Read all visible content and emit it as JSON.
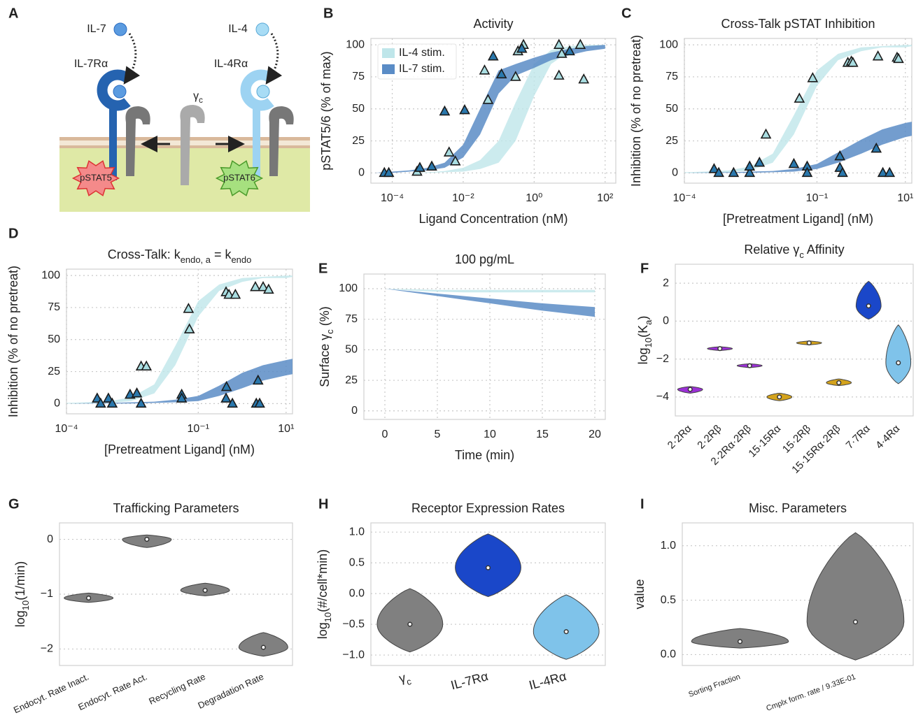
{
  "diagram": {
    "panel": "A",
    "ligands": [
      "IL-7",
      "IL-4"
    ],
    "receptors": [
      "IL-7Rα",
      "IL-4Rα"
    ],
    "common_chain": [
      "γ",
      "c"
    ],
    "signals": [
      "pSTAT5",
      "pSTAT6"
    ]
  },
  "chart_data": [
    {
      "panel": "B",
      "type": "curve",
      "title": "Activity",
      "xlabel": "Ligand Concentration (nM)",
      "ylabel": "pSTAT5/6 (% of max)",
      "xlog": true,
      "xlim": [
        2.5e-05,
        200
      ],
      "ylim": [
        -8,
        105
      ],
      "xticks": [
        {
          "value": 0.0001,
          "label": "10⁻⁴"
        },
        {
          "value": 0.01,
          "label": "10⁻²"
        },
        {
          "value": 1,
          "label": "10⁰"
        },
        {
          "value": 100,
          "label": "10²"
        }
      ],
      "yticks": [
        0,
        25,
        50,
        75,
        100
      ],
      "grid": true,
      "legend": "upper left",
      "series": [
        {
          "name": "IL-4 stim.",
          "color": "#bfe6ea",
          "marker_color": "#a9dde1",
          "x": [
            0.0005,
            0.004,
            0.006,
            0.04,
            0.05,
            0.3,
            0.35,
            0.5,
            5,
            6,
            20,
            5,
            25
          ],
          "values": [
            1,
            16,
            9,
            80,
            57,
            75,
            95,
            100,
            100,
            93,
            100,
            76,
            73
          ],
          "band": {
            "x": [
              3e-05,
              0.0001,
              0.0003,
              0.001,
              0.003,
              0.01,
              0.03,
              0.1,
              0.3,
              1,
              3,
              10,
              30,
              100
            ],
            "lower": [
              0,
              0,
              0,
              0,
              0.5,
              1,
              3,
              8,
              25,
              60,
              85,
              95,
              98,
              99
            ],
            "upper": [
              0,
              0,
              0,
              0.5,
              1.5,
              4,
              10,
              25,
              55,
              85,
              96,
              99,
              100,
              100
            ]
          }
        },
        {
          "name": "IL-7 stim.",
          "color": "#5a8cc6",
          "marker_color": "#2a78ad",
          "x": [
            6e-05,
            8e-05,
            0.0006,
            0.0013,
            0.003,
            0.011,
            0.07,
            0.12,
            0.45,
            10
          ],
          "values": [
            0,
            0,
            4,
            5,
            48,
            49,
            91,
            77,
            97,
            95
          ],
          "band": {
            "x": [
              3e-05,
              0.0001,
              0.0003,
              0.001,
              0.003,
              0.01,
              0.03,
              0.1,
              0.3,
              1,
              3,
              10,
              30,
              100
            ],
            "lower": [
              0,
              0,
              1,
              2,
              4,
              12,
              30,
              62,
              76,
              82,
              88,
              92,
              95,
              97
            ],
            "upper": [
              0,
              1,
              2,
              4,
              8,
              22,
              50,
              80,
              85,
              90,
              94,
              97,
              99,
              100
            ]
          }
        }
      ]
    },
    {
      "panel": "C",
      "type": "curve",
      "title": "Cross-Talk pSTAT Inhibition",
      "xlabel": "[Pretreatment Ligand] (nM)",
      "ylabel": "Inhibition (% of no pretreat)",
      "xlog": true,
      "xlim": [
        0.0001,
        14
      ],
      "ylim": [
        -8,
        105
      ],
      "xticks": [
        {
          "value": 0.0001,
          "label": "10⁻⁴"
        },
        {
          "value": 0.1,
          "label": "10⁻¹"
        },
        {
          "value": 10,
          "label": "10¹"
        }
      ],
      "yticks": [
        0,
        25,
        50,
        75,
        100
      ],
      "grid": true,
      "series": [
        {
          "color": "#bfe6ea",
          "marker_color": "#a9dde1",
          "x": [
            0.007,
            0.04,
            0.08,
            0.5,
            0.6,
            0.65,
            2.4,
            6.5,
            7
          ],
          "values": [
            30,
            58,
            74,
            86,
            87,
            86,
            91,
            90,
            89
          ],
          "band": {
            "x": [
              0.0001,
              0.0003,
              0.001,
              0.003,
              0.01,
              0.03,
              0.1,
              0.3,
              1,
              3,
              10,
              14
            ],
            "lower": [
              0,
              0,
              0.5,
              2,
              8,
              30,
              68,
              88,
              95,
              98,
              98,
              99
            ],
            "upper": [
              0.5,
              1,
              2,
              5,
              15,
              45,
              80,
              93,
              98,
              99,
              100,
              100
            ]
          }
        },
        {
          "color": "#5a8cc6",
          "marker_color": "#2a78ad",
          "x": [
            0.00047,
            0.0006,
            0.0013,
            0.003,
            0.003,
            0.005,
            0.03,
            0.06,
            0.06,
            0.33,
            0.33,
            0.38,
            2.2,
            3.1,
            4.4
          ],
          "values": [
            3,
            0,
            0,
            0,
            5,
            8,
            7,
            5,
            0,
            13,
            4,
            0,
            19,
            0,
            0
          ],
          "band": {
            "x": [
              0.0001,
              0.0003,
              0.001,
              0.003,
              0.01,
              0.03,
              0.1,
              0.3,
              1,
              3,
              10,
              14
            ],
            "lower": [
              0,
              0,
              0,
              0,
              0.5,
              1,
              3,
              8,
              15,
              22,
              28,
              29
            ],
            "upper": [
              0,
              0.3,
              0.5,
              1,
              1.5,
              3,
              7,
              16,
              26,
              34,
              39,
              40
            ]
          }
        }
      ]
    },
    {
      "panel": "D",
      "type": "curve",
      "title": [
        "Cross-Talk: k",
        "endo, a",
        " = k",
        "endo"
      ],
      "xlabel": "[Pretreatment Ligand] (nM)",
      "ylabel": "Inhibition (% of no pretreat)",
      "xlog": true,
      "xlim": [
        0.0001,
        14
      ],
      "ylim": [
        -8,
        105
      ],
      "xticks": [
        {
          "value": 0.0001,
          "label": "10⁻⁴"
        },
        {
          "value": 0.1,
          "label": "10⁻¹"
        },
        {
          "value": 10,
          "label": "10¹"
        }
      ],
      "yticks": [
        0,
        25,
        50,
        75,
        100
      ],
      "grid": true,
      "series": [
        {
          "color": "#bfe6ea",
          "marker_color": "#a9dde1",
          "x": [
            0.005,
            0.0066,
            0.06,
            0.063,
            0.43,
            0.5,
            0.7,
            2,
            3,
            4
          ],
          "values": [
            29,
            29,
            74,
            58,
            87,
            85,
            85,
            91,
            91,
            89
          ],
          "band": {
            "x": [
              0.0001,
              0.0003,
              0.001,
              0.003,
              0.01,
              0.03,
              0.1,
              0.3,
              1,
              3,
              10,
              14
            ],
            "lower": [
              0,
              0,
              0.5,
              2,
              8,
              30,
              68,
              88,
              95,
              98,
              98,
              99
            ],
            "upper": [
              0.5,
              1,
              2,
              5,
              15,
              45,
              80,
              93,
              98,
              99,
              100,
              100
            ]
          }
        },
        {
          "color": "#5a8cc6",
          "marker_color": "#2a78ad",
          "x": [
            0.0005,
            0.0006,
            0.0009,
            0.0011,
            0.0028,
            0.004,
            0.005,
            0.042,
            0.042,
            0.44,
            0.43,
            0.6,
            2.3,
            2.1,
            2.5
          ],
          "values": [
            4,
            0,
            4,
            0,
            7,
            8,
            0,
            7,
            4,
            13,
            4,
            0,
            18,
            0,
            0
          ],
          "band": {
            "x": [
              0.0001,
              0.0003,
              0.001,
              0.003,
              0.01,
              0.03,
              0.1,
              0.3,
              1,
              3,
              10,
              14
            ],
            "lower": [
              0,
              0,
              0,
              0,
              0.5,
              1,
              2,
              6,
              12,
              18,
              22,
              23
            ],
            "upper": [
              0,
              0.3,
              0.5,
              1,
              1.5,
              3,
              6,
              14,
              24,
              30,
              34,
              35
            ]
          }
        }
      ]
    },
    {
      "panel": "E",
      "type": "curve",
      "title": "100 pg/mL",
      "xlabel": "Time (min)",
      "ylabel": [
        "Surface γ",
        "c",
        " (%)"
      ],
      "xlog": false,
      "xlim": [
        -2,
        21
      ],
      "ylim": [
        -7,
        112
      ],
      "xticks": [
        0,
        5,
        10,
        15,
        20
      ],
      "yticks": [
        0,
        25,
        50,
        75,
        100
      ],
      "grid": true,
      "series": [
        {
          "color": "#bfe6ea",
          "band": {
            "x": [
              0,
              2.5,
              5,
              7.5,
              10,
              12.5,
              15,
              17.5,
              20
            ],
            "lower": [
              100,
              98.5,
              97.5,
              97,
              97,
              97,
              97,
              97,
              97
            ],
            "upper": [
              100,
              99.5,
              99,
              99,
              99,
              99,
              99,
              99,
              99
            ]
          }
        },
        {
          "color": "#5a8cc6",
          "band": {
            "x": [
              0,
              2.5,
              5,
              7.5,
              10,
              12.5,
              15,
              17.5,
              20
            ],
            "lower": [
              100,
              97,
              94,
              91,
              88,
              85,
              82,
              79.5,
              77
            ],
            "upper": [
              100,
              98,
              96,
              94,
              92,
              90,
              88,
              86.5,
              85
            ]
          }
        }
      ]
    },
    {
      "panel": "F",
      "type": "violin",
      "title": [
        "Relative γ",
        "c",
        " Affinity"
      ],
      "ylabel": [
        "log",
        "10",
        "(K",
        "a",
        ")"
      ],
      "categories": [
        "2·2Rα",
        "2·2Rβ",
        "2·2Rα·2Rβ",
        "15·15Rα",
        "15·2Rβ",
        "15·15Rα·2Rβ",
        "7·7Rα",
        "4·4Rα"
      ],
      "colors": [
        "#9b30d6",
        "#9b30d6",
        "#9b30d6",
        "#d4a31c",
        "#d4a31c",
        "#d4a31c",
        "#1a47c9",
        "#7fc3ea"
      ],
      "values": [
        -3.6,
        -1.45,
        -2.35,
        -4.0,
        -1.15,
        -3.25,
        0.8,
        -2.2
      ],
      "low": [
        -3.8,
        -1.55,
        -2.45,
        -4.2,
        -1.25,
        -3.4,
        0.1,
        -3.3
      ],
      "high": [
        -3.45,
        -1.35,
        -2.25,
        -3.8,
        -1.05,
        -3.05,
        2.1,
        -0.2
      ],
      "ylim": [
        -5,
        3
      ],
      "yticks": [
        {
          "value": -4,
          "label": "−4"
        },
        {
          "value": -2,
          "label": "−2"
        },
        0,
        2
      ],
      "grid": true
    },
    {
      "panel": "G",
      "type": "violin",
      "title": "Trafficking Parameters",
      "ylabel": [
        "log",
        "10",
        "(1/min)"
      ],
      "categories": [
        "Endocyt. Rate Inact.",
        "Endocyt. Rate Act.",
        "Recycling Rate",
        "Degradation Rate"
      ],
      "colors": [
        "#808080",
        "#808080",
        "#808080",
        "#808080"
      ],
      "values": [
        -1.07,
        0,
        -0.93,
        -1.97
      ],
      "low": [
        -1.15,
        -0.15,
        -1.03,
        -2.13
      ],
      "high": [
        -0.98,
        0.08,
        -0.8,
        -1.7
      ],
      "ylim": [
        -2.3,
        0.3
      ],
      "yticks": [
        {
          "value": -2,
          "label": "−2"
        },
        {
          "value": -1,
          "label": "−1"
        },
        0
      ],
      "grid": true
    },
    {
      "panel": "H",
      "type": "violin",
      "title": "Receptor Expression Rates",
      "ylabel": [
        "log",
        "10",
        "(#/cell*min)"
      ],
      "categories": [
        [
          "γ",
          "c"
        ],
        "IL-7Rα",
        "IL-4Rα"
      ],
      "colors": [
        "#808080",
        "#1a47c9",
        "#7fc3ea"
      ],
      "values": [
        -0.5,
        0.42,
        -0.62
      ],
      "low": [
        -0.95,
        -0.05,
        -1.07
      ],
      "high": [
        0.08,
        0.97,
        -0.02
      ],
      "ylim": [
        -1.17,
        1.15
      ],
      "yticks": [
        {
          "value": -1,
          "label": "−1.0"
        },
        {
          "value": -0.5,
          "label": "−0.5"
        },
        {
          "value": 0,
          "label": "0.0"
        },
        {
          "value": 0.5,
          "label": "0.5"
        },
        {
          "value": 1,
          "label": "1.0"
        }
      ],
      "grid": true
    },
    {
      "panel": "I",
      "type": "violin",
      "title": "Misc. Parameters",
      "ylabel": "value",
      "categories": [
        "Sorting Fraction",
        "Cmplx form. rate / 9.33E-01"
      ],
      "colors": [
        "#808080",
        "#808080"
      ],
      "values": [
        0.12,
        0.3
      ],
      "low": [
        0.06,
        -0.05
      ],
      "high": [
        0.24,
        1.12
      ],
      "ylim": [
        -0.1,
        1.21
      ],
      "yticks": [
        {
          "value": 0,
          "label": "0.0"
        },
        {
          "value": 0.5,
          "label": "0.5"
        },
        {
          "value": 1,
          "label": "1.0"
        }
      ],
      "grid": true
    }
  ]
}
